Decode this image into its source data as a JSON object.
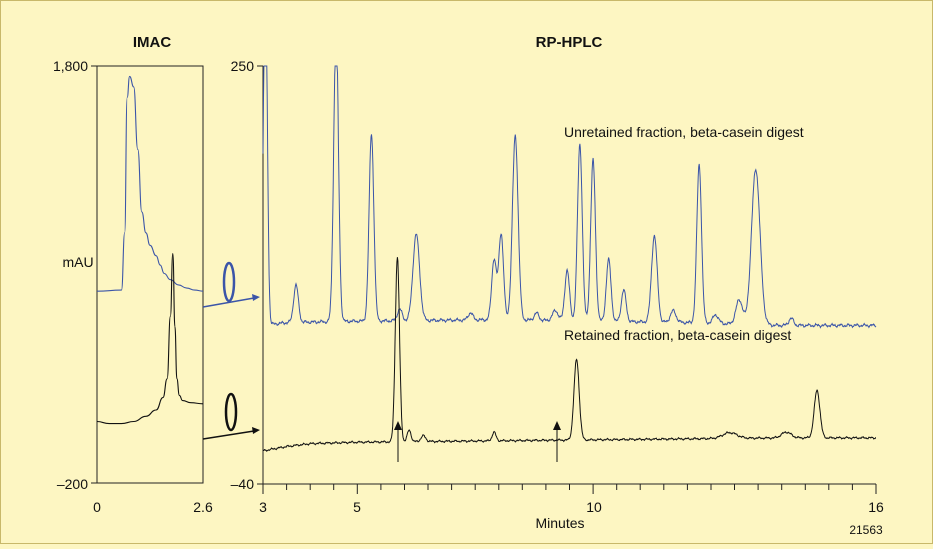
{
  "chart_data": [
    {
      "type": "line",
      "title": "IMAC",
      "ylabel": "mAU",
      "xlabel": "",
      "xlim": [
        0,
        2.6
      ],
      "ylim": [
        -200,
        1800
      ],
      "x_ticks": [
        "0",
        "2.6"
      ],
      "y_ticks": [
        "1,800",
        "–200"
      ],
      "colors": {
        "blue": "#3b55a8",
        "black": "#111111"
      },
      "series": [
        {
          "color": "#3b55a8",
          "x": [
            0,
            0.6,
            0.68,
            0.74,
            0.8,
            0.9,
            1.0,
            1.1,
            1.2,
            1.3,
            1.45,
            1.55,
            1.65,
            1.8,
            2.0,
            2.2,
            2.4,
            2.6
          ],
          "y": [
            720,
            725,
            1000,
            1650,
            1750,
            1700,
            1400,
            1100,
            1000,
            940,
            890,
            845,
            805,
            775,
            750,
            735,
            725,
            720
          ]
        },
        {
          "color": "#111111",
          "x": [
            0,
            0.3,
            0.6,
            0.9,
            1.2,
            1.45,
            1.62,
            1.72,
            1.8,
            1.86,
            1.91,
            1.96,
            2.02,
            2.1,
            2.3,
            2.6
          ],
          "y": [
            95,
            85,
            85,
            95,
            120,
            150,
            210,
            300,
            600,
            900,
            550,
            300,
            220,
            195,
            185,
            180
          ]
        }
      ]
    },
    {
      "type": "line",
      "title": "RP-HPLC",
      "xlabel": "Minutes",
      "ylabel": "",
      "xlim": [
        3,
        16
      ],
      "ylim": [
        -40,
        250
      ],
      "x_ticks": [
        "3",
        "5",
        "10",
        "16"
      ],
      "y_ticks": [
        "250",
        "–40"
      ],
      "colors": {
        "blue": "#3b55a8",
        "black": "#111111"
      },
      "series": [
        {
          "name": "Unretained fraction, beta-casein digest",
          "color": "#3b55a8",
          "baseline": [
            [
              3.0,
              70
            ],
            [
              3.5,
              72
            ],
            [
              5,
              73
            ],
            [
              8,
              74
            ],
            [
              12,
              72
            ],
            [
              14,
              70
            ],
            [
              16,
              70
            ]
          ],
          "peaks": [
            [
              3.05,
              260,
              0.04
            ],
            [
              3.7,
              26,
              0.05
            ],
            [
              4.55,
              205,
              0.05
            ],
            [
              5.3,
              130,
              0.05
            ],
            [
              5.9,
              8,
              0.05
            ],
            [
              6.25,
              60,
              0.07
            ],
            [
              7.4,
              5,
              0.05
            ],
            [
              7.9,
              42,
              0.05
            ],
            [
              8.05,
              60,
              0.05
            ],
            [
              8.35,
              128,
              0.06
            ],
            [
              8.8,
              5,
              0.05
            ],
            [
              9.2,
              7,
              0.06
            ],
            [
              9.45,
              35,
              0.05
            ],
            [
              9.72,
              123,
              0.05
            ],
            [
              10.0,
              112,
              0.05
            ],
            [
              10.33,
              43,
              0.05
            ],
            [
              10.65,
              22,
              0.05
            ],
            [
              11.3,
              60,
              0.06
            ],
            [
              11.7,
              8,
              0.06
            ],
            [
              12.25,
              110,
              0.05
            ],
            [
              12.6,
              6,
              0.06
            ],
            [
              13.1,
              17,
              0.07
            ],
            [
              13.45,
              108,
              0.09
            ],
            [
              14.2,
              5,
              0.05
            ]
          ]
        },
        {
          "name": "Retained fraction, beta-casein digest",
          "color": "#111111",
          "baseline": [
            [
              3.0,
              -17
            ],
            [
              3.5,
              -14
            ],
            [
              4,
              -12
            ],
            [
              5,
              -11
            ],
            [
              8,
              -10
            ],
            [
              11,
              -9
            ],
            [
              14,
              -8
            ],
            [
              16,
              -8
            ]
          ],
          "peaks": [
            [
              5.85,
              128,
              0.045
            ],
            [
              6.1,
              8,
              0.04
            ],
            [
              6.4,
              4,
              0.05
            ],
            [
              7.9,
              6,
              0.04
            ],
            [
              9.65,
              56,
              0.055
            ],
            [
              12.9,
              4,
              0.15
            ],
            [
              14.1,
              4,
              0.1
            ],
            [
              14.75,
              33,
              0.06
            ]
          ]
        }
      ]
    }
  ],
  "figure_id": "21563"
}
